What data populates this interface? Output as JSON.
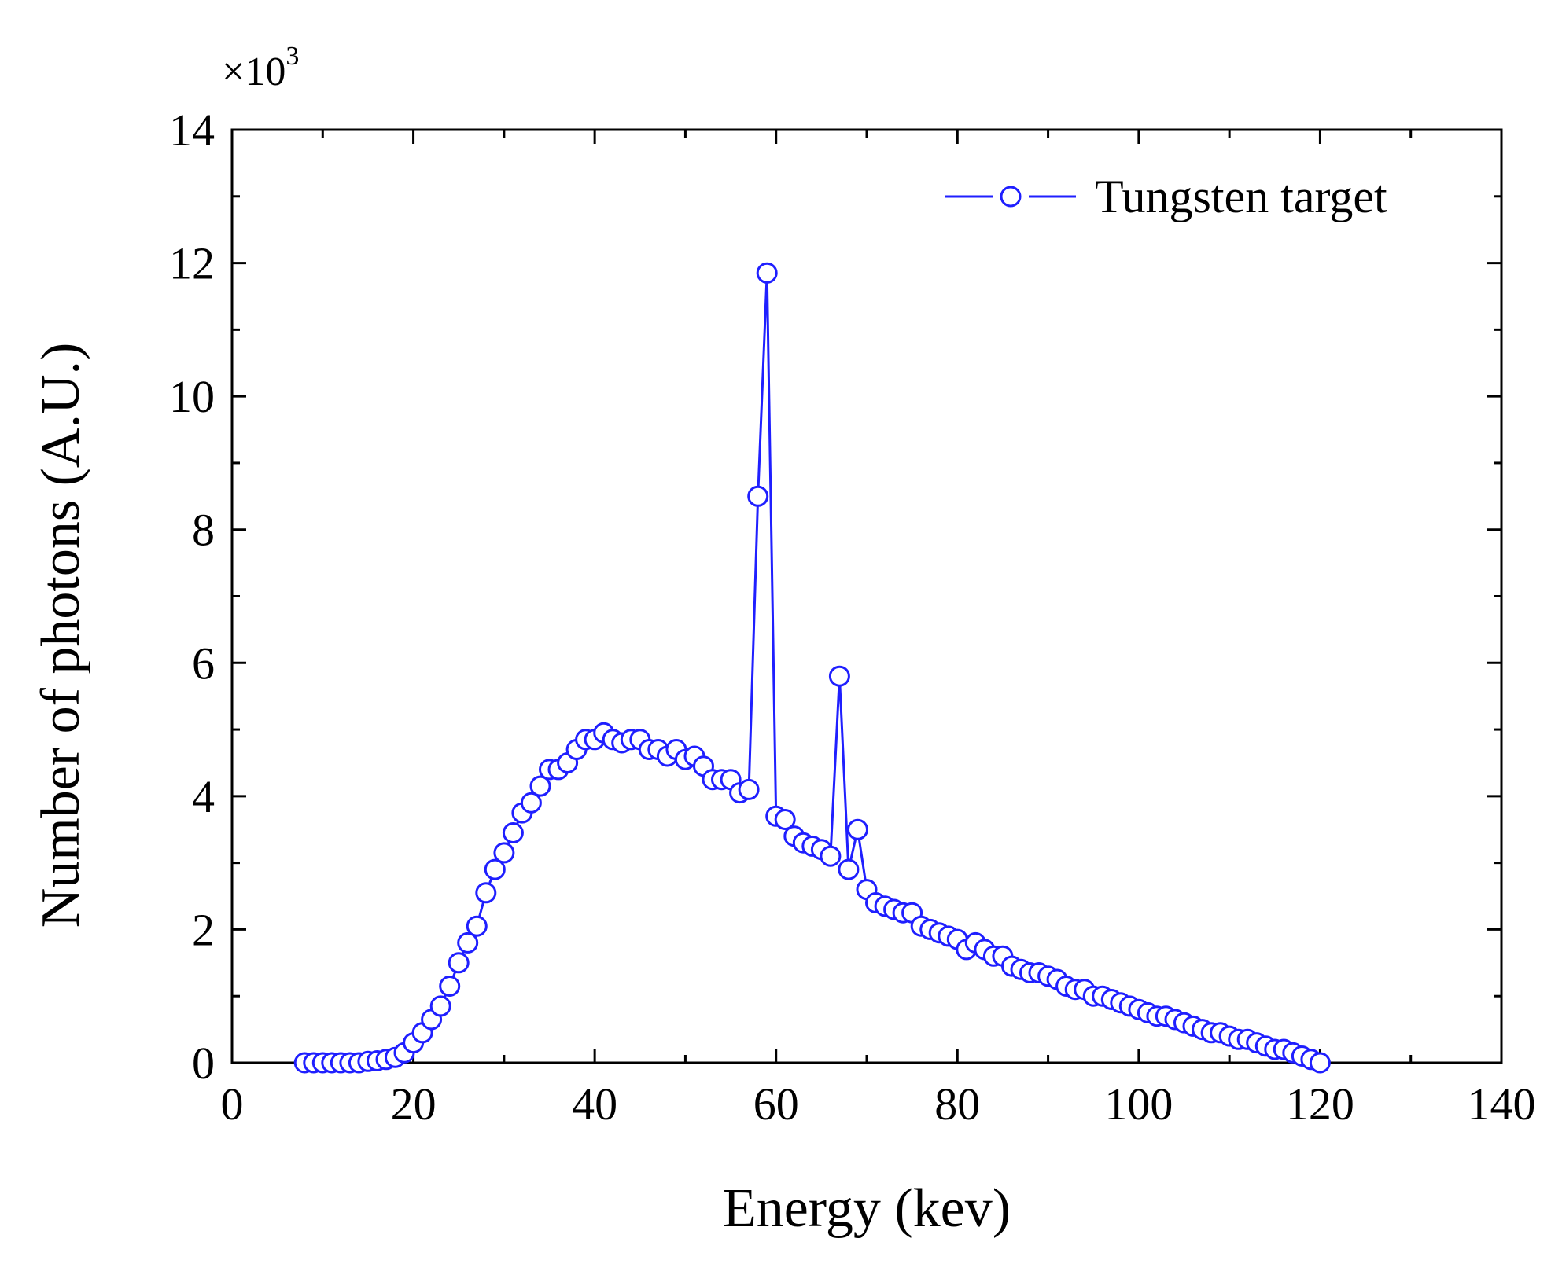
{
  "chart_data": {
    "type": "line",
    "title": "",
    "xlabel": "Energy (kev)",
    "ylabel": "Number of photons (A.U.)",
    "y_multiplier_label": "×10",
    "y_multiplier_exponent": "3",
    "xlim": [
      0,
      140
    ],
    "ylim": [
      0,
      14
    ],
    "xticks": [
      0,
      20,
      40,
      60,
      80,
      100,
      120,
      140
    ],
    "xtick_labels": [
      "0",
      "20",
      "40",
      "60",
      "80",
      "100",
      "120",
      "140"
    ],
    "yticks": [
      0,
      2,
      4,
      6,
      8,
      10,
      12,
      14
    ],
    "ytick_labels": [
      "0",
      "2",
      "4",
      "6",
      "8",
      "10",
      "12",
      "14"
    ],
    "grid": false,
    "legend_position": "top-right",
    "series": [
      {
        "name": "Tungsten target",
        "color": "#1f1fff",
        "marker": "open-circle",
        "x": [
          8,
          9,
          10,
          11,
          12,
          13,
          14,
          15,
          16,
          17,
          18,
          19,
          20,
          21,
          22,
          23,
          24,
          25,
          26,
          27,
          28,
          29,
          30,
          31,
          32,
          33,
          34,
          35,
          36,
          37,
          38,
          39,
          40,
          41,
          42,
          43,
          44,
          45,
          46,
          47,
          48,
          49,
          50,
          51,
          52,
          53,
          54,
          55,
          56,
          57,
          58,
          59,
          60,
          61,
          62,
          63,
          64,
          65,
          66,
          67,
          68,
          69,
          70,
          71,
          72,
          73,
          74,
          75,
          76,
          77,
          78,
          79,
          80,
          81,
          82,
          83,
          84,
          85,
          86,
          87,
          88,
          89,
          90,
          91,
          92,
          93,
          94,
          95,
          96,
          97,
          98,
          99,
          100,
          101,
          102,
          103,
          104,
          105,
          106,
          107,
          108,
          109,
          110,
          111,
          112,
          113,
          114,
          115,
          116,
          117,
          118,
          119,
          120
        ],
        "y": [
          0,
          0,
          0,
          0,
          0,
          0,
          0,
          0.02,
          0.03,
          0.05,
          0.08,
          0.15,
          0.3,
          0.45,
          0.65,
          0.85,
          1.15,
          1.5,
          1.8,
          2.05,
          2.55,
          2.9,
          3.15,
          3.45,
          3.75,
          3.9,
          4.15,
          4.4,
          4.4,
          4.5,
          4.7,
          4.85,
          4.85,
          4.95,
          4.85,
          4.8,
          4.85,
          4.85,
          4.7,
          4.7,
          4.6,
          4.7,
          4.55,
          4.6,
          4.45,
          4.25,
          4.25,
          4.25,
          4.05,
          4.1,
          8.5,
          11.85,
          3.7,
          3.65,
          3.4,
          3.3,
          3.25,
          3.2,
          3.1,
          5.8,
          2.9,
          3.5,
          2.6,
          2.4,
          2.35,
          2.3,
          2.25,
          2.25,
          2.05,
          2.0,
          1.95,
          1.9,
          1.85,
          1.7,
          1.8,
          1.7,
          1.6,
          1.6,
          1.45,
          1.4,
          1.35,
          1.35,
          1.3,
          1.25,
          1.15,
          1.1,
          1.1,
          1.0,
          1.0,
          0.95,
          0.9,
          0.85,
          0.8,
          0.75,
          0.7,
          0.7,
          0.65,
          0.6,
          0.55,
          0.5,
          0.45,
          0.45,
          0.4,
          0.35,
          0.35,
          0.3,
          0.25,
          0.2,
          0.2,
          0.15,
          0.1,
          0.05,
          0
        ]
      }
    ]
  }
}
